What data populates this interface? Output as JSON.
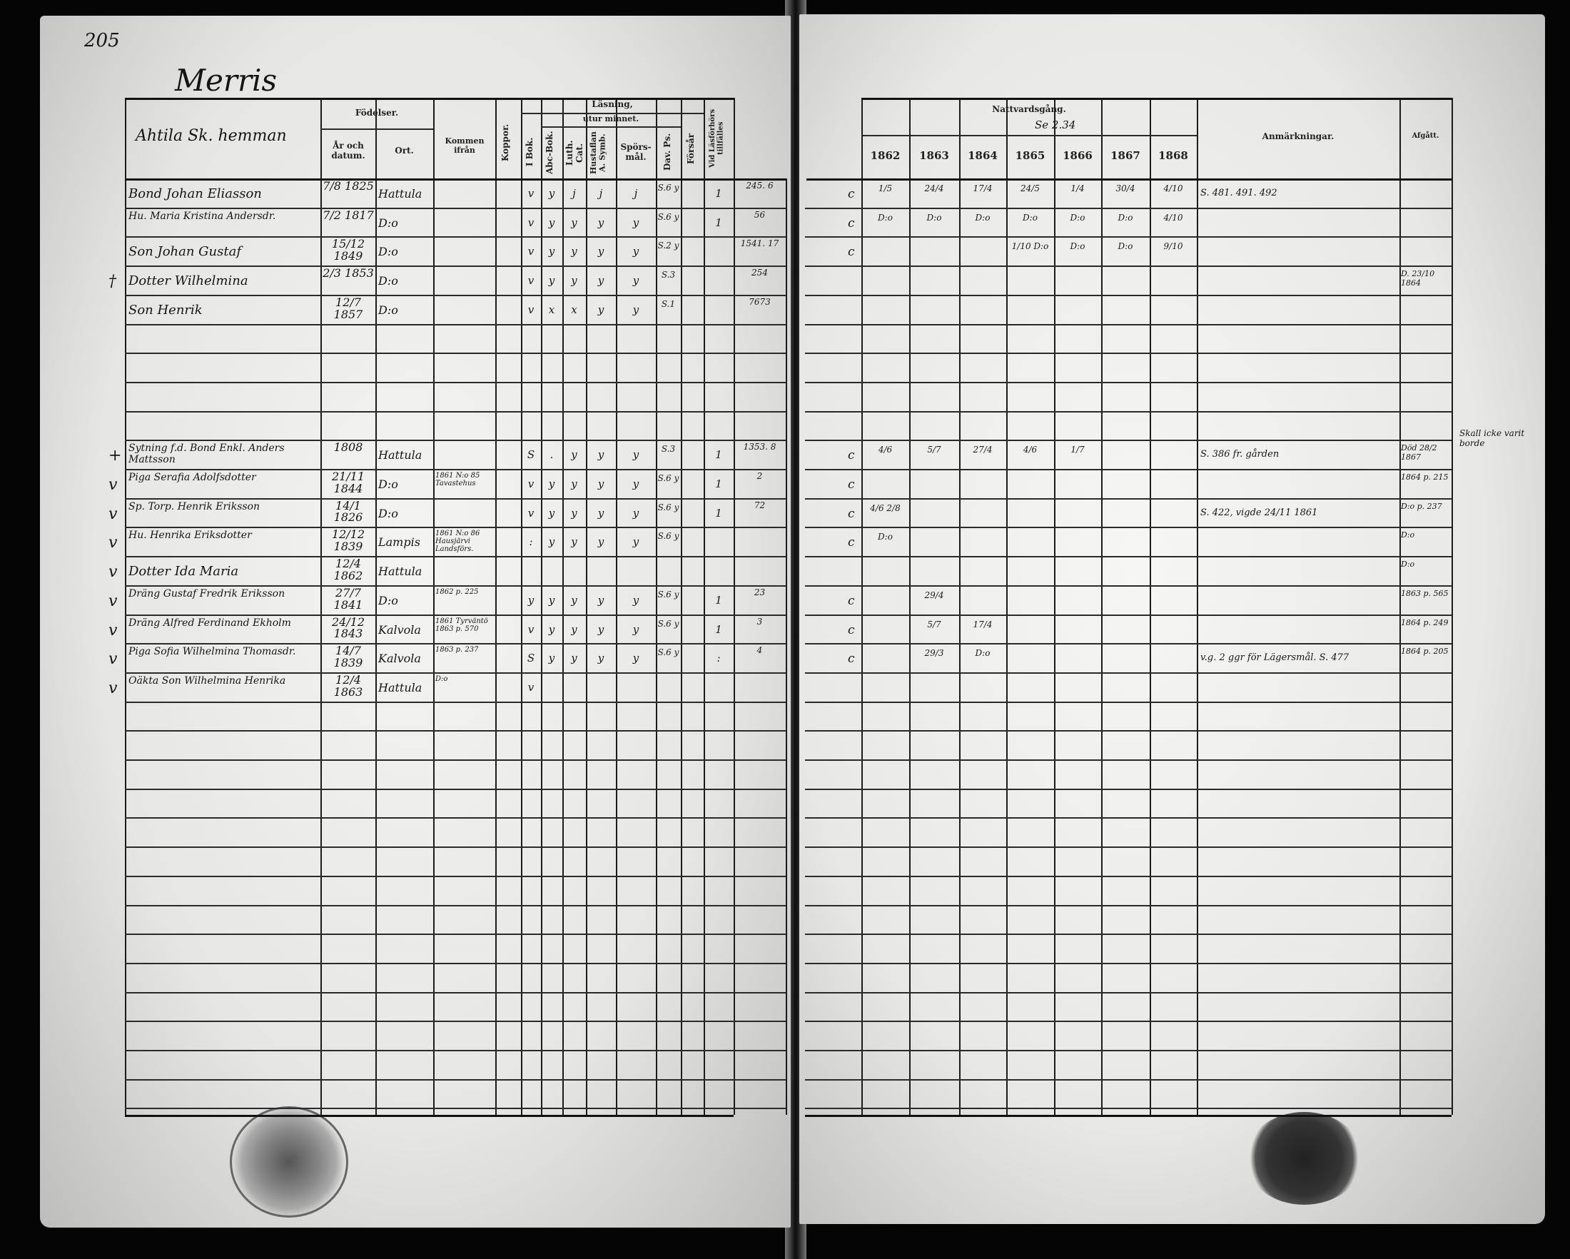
{
  "page_number": "205",
  "village": "Merris",
  "left_header": {
    "household": "Ahtila Sk. hemman",
    "birth_group": "Födelser.",
    "birth_date": "År och datum.",
    "birth_place": "Ort.",
    "came_from": "Kommen ifrån",
    "smallpox": "Koppor.",
    "reading_group": "Läsning,",
    "by_heart": "utur minnet.",
    "in_book": "I Bok.",
    "abc_book": "Abc-Bok.",
    "luth_cat": "Luth. Cat.",
    "hustaflan": "Hustaflan A. Symb.",
    "questions": "Spörs-mål.",
    "dav_ps": "Dav. Ps.",
    "forsar": "Försår",
    "exam": "Vid Läsförhörs tillfälles"
  },
  "right_header": {
    "communion": "Nattvardsgång.",
    "communion_note": "Se 2.34",
    "years": [
      "1862",
      "1863",
      "1864",
      "1865",
      "1866",
      "1867",
      "1868"
    ],
    "remarks": "Anmärkningar.",
    "departed": "Afgått."
  },
  "margin_note": "Skall icke varit borde",
  "left_rows": [
    {
      "mark": "",
      "name": "Bond Johan Eliasson",
      "date": "7/8 1825",
      "place": "Hattula",
      "from": "",
      "koppor": "v",
      "ibok": "y",
      "abc": "j",
      "luth": "j",
      "hust": "j",
      "spors": "S.6 y",
      "dav": "",
      "forsar": "1",
      "exam": "245. 6"
    },
    {
      "mark": "",
      "name": "Hu. Maria Kristina Andersdr.",
      "date": "7/2 1817",
      "place": "D:o",
      "from": "",
      "koppor": "v",
      "ibok": "y",
      "abc": "y",
      "luth": "y",
      "hust": "y",
      "spors": "S.6 y",
      "dav": "",
      "forsar": "1",
      "exam": "56"
    },
    {
      "mark": "",
      "name": "Son Johan Gustaf",
      "date": "15/12 1849",
      "place": "D:o",
      "from": "",
      "koppor": "v",
      "ibok": "y",
      "abc": "y",
      "luth": "y",
      "hust": "y",
      "spors": "S.2 y",
      "dav": "",
      "forsar": "",
      "exam": "1541. 17"
    },
    {
      "mark": "†",
      "name": "Dotter Wilhelmina",
      "date": "2/3 1853",
      "place": "D:o",
      "from": "",
      "koppor": "v",
      "ibok": "y",
      "abc": "y",
      "luth": "y",
      "hust": "y",
      "spors": "S.3",
      "dav": "",
      "forsar": "",
      "exam": "254"
    },
    {
      "mark": "",
      "name": "Son Henrik",
      "date": "12/7 1857",
      "place": "D:o",
      "from": "",
      "koppor": "v",
      "ibok": "x",
      "abc": "x",
      "luth": "y",
      "hust": "y",
      "spors": "S.1",
      "dav": "",
      "forsar": "",
      "exam": "7673"
    },
    {},
    {},
    {},
    {},
    {
      "mark": "+",
      "name": "Sytning f.d. Bond Enkl. Anders Mattsson",
      "date": "1808",
      "place": "Hattula",
      "from": "",
      "koppor": "S",
      "ibok": ".",
      "abc": "y",
      "luth": "y",
      "hust": "y",
      "spors": "S.3",
      "dav": "",
      "forsar": "1",
      "exam": "1353. 8"
    },
    {
      "mark": "v",
      "name": "Piga Serafia Adolfsdotter",
      "date": "21/11 1844",
      "place": "D:o",
      "from": "1861 N:o 85 Tavastehus",
      "koppor": "v",
      "ibok": "y",
      "abc": "y",
      "luth": "y",
      "hust": "y",
      "spors": "S.6 y",
      "dav": "",
      "forsar": "1",
      "exam": "2"
    },
    {
      "mark": "v",
      "name": "Sp. Torp. Henrik Eriksson",
      "date": "14/1 1826",
      "place": "D:o",
      "from": "",
      "koppor": "v",
      "ibok": "y",
      "abc": "y",
      "luth": "y",
      "hust": "y",
      "spors": "S.6 y",
      "dav": "",
      "forsar": "1",
      "exam": "72"
    },
    {
      "mark": "v",
      "name": "Hu. Henrika Eriksdotter",
      "date": "12/12 1839",
      "place": "Lampis",
      "from": "1861 N:o 86 Hausjärvi Landsförs.",
      "koppor": ":",
      "ibok": "y",
      "abc": "y",
      "luth": "y",
      "hust": "y",
      "spors": "S.6 y",
      "dav": "",
      "forsar": "",
      "exam": ""
    },
    {
      "mark": "v",
      "name": "Dotter Ida Maria",
      "date": "12/4 1862",
      "place": "Hattula",
      "from": "",
      "koppor": "",
      "ibok": "",
      "abc": "",
      "luth": "",
      "hust": "",
      "spors": "",
      "dav": "",
      "forsar": "",
      "exam": ""
    },
    {
      "mark": "v",
      "name": "Dräng Gustaf Fredrik Eriksson",
      "date": "27/7 1841",
      "place": "D:o",
      "from": "1862 p. 225",
      "koppor": "y",
      "ibok": "y",
      "abc": "y",
      "luth": "y",
      "hust": "y",
      "spors": "S.6 y",
      "dav": "",
      "forsar": "1",
      "exam": "23"
    },
    {
      "mark": "v",
      "name": "Dräng Alfred Ferdinand Ekholm",
      "date": "24/12 1843",
      "place": "Kalvola",
      "from": "1861 Tyrväntö 1863 p. 570",
      "koppor": "v",
      "ibok": "y",
      "abc": "y",
      "luth": "y",
      "hust": "y",
      "spors": "S.6 y",
      "dav": "",
      "forsar": "1",
      "exam": "3"
    },
    {
      "mark": "v",
      "name": "Piga Sofia Wilhelmina Thomasdr.",
      "date": "14/7 1839",
      "place": "Kalvola",
      "from": "1863 p. 237",
      "koppor": "S",
      "ibok": "y",
      "abc": "y",
      "luth": "y",
      "hust": "y",
      "spors": "S.6 y",
      "dav": "",
      "forsar": ":",
      "exam": "4"
    },
    {
      "mark": "v",
      "name": "Oäkta Son Wilhelmina Henrika",
      "date": "12/4 1863",
      "place": "Hattula",
      "from": "D:o",
      "koppor": "v",
      "ibok": "",
      "abc": "",
      "luth": "",
      "hust": "",
      "spors": "",
      "dav": "",
      "forsar": "",
      "exam": ""
    }
  ],
  "right_rows": [
    {
      "margin": "c",
      "comm": [
        "1/5",
        "24/4",
        "17/4",
        "24/5",
        "1/4",
        "30/4",
        "4/10"
      ],
      "remarks": "S. 481. 491. 492",
      "departed": ""
    },
    {
      "margin": "c",
      "comm": [
        "D:o",
        "D:o",
        "D:o",
        "D:o",
        "D:o",
        "D:o",
        "4/10"
      ],
      "remarks": "",
      "departed": ""
    },
    {
      "margin": "c",
      "comm": [
        "",
        "",
        "",
        "1/10 D:o",
        "D:o",
        "D:o",
        "9/10"
      ],
      "remarks": "",
      "departed": ""
    },
    {
      "margin": "",
      "comm": [
        "",
        "",
        "",
        "",
        "",
        "",
        ""
      ],
      "remarks": "",
      "departed": "D. 23/10 1864"
    },
    {},
    {},
    {},
    {},
    {},
    {
      "margin": "c",
      "comm": [
        "4/6",
        "5/7",
        "27/4",
        "4/6",
        "1/7",
        "",
        ""
      ],
      "remarks": "S. 386 fr. gården",
      "departed": "Död 28/2 1867"
    },
    {
      "margin": "c",
      "comm": [
        "",
        "",
        "",
        "",
        "",
        "",
        ""
      ],
      "remarks": "",
      "departed": "1864 p. 215"
    },
    {
      "margin": "c",
      "comm": [
        "4/6 2/8",
        "",
        "",
        "",
        "",
        "",
        ""
      ],
      "remarks": "S. 422, vigde 24/11 1861",
      "departed": "D:o p. 237"
    },
    {
      "margin": "c",
      "comm": [
        "D:o",
        "",
        "",
        "",
        "",
        "",
        ""
      ],
      "remarks": "",
      "departed": "D:o"
    },
    {
      "margin": "",
      "comm": [
        "",
        "",
        "",
        "",
        "",
        "",
        ""
      ],
      "remarks": "",
      "departed": "D:o"
    },
    {
      "margin": "c",
      "comm": [
        "",
        "29/4",
        "",
        "",
        "",
        "",
        ""
      ],
      "remarks": "",
      "departed": "1863 p. 565"
    },
    {
      "margin": "c",
      "comm": [
        "",
        "5/7",
        "17/4",
        "",
        "",
        "",
        ""
      ],
      "remarks": "",
      "departed": "1864 p. 249"
    },
    {
      "margin": "c",
      "comm": [
        "",
        "29/3",
        "D:o",
        "",
        "",
        "",
        ""
      ],
      "remarks": "v.g. 2 ggr för Lägersmål. S. 477",
      "departed": "1864 p. 205"
    }
  ]
}
